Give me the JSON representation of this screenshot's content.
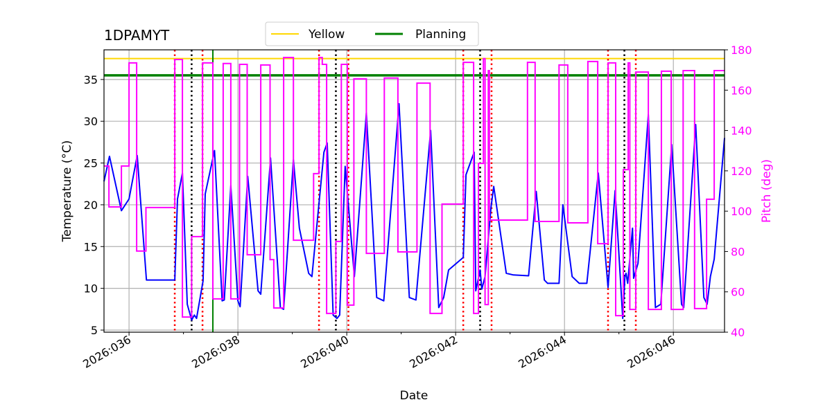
{
  "chart_data": {
    "type": "line",
    "title": "1DPAMYT",
    "xlabel": "Date",
    "ylabel": "Temperature ($^\\circ$C)",
    "ylabel_display": "Temperature (°C)",
    "y2label": "Pitch (deg)",
    "xlim": [
      35.54,
      46.94
    ],
    "ylim": [
      4.75,
      38.55
    ],
    "y2lim": [
      40,
      180
    ],
    "grid": true,
    "legend_placement": "top-center (above axes)",
    "xticks": [
      {
        "value": 36,
        "label": "2026:036"
      },
      {
        "value": 38,
        "label": "2026:038"
      },
      {
        "value": 40,
        "label": "2026:040"
      },
      {
        "value": 42,
        "label": "2026:042"
      },
      {
        "value": 44,
        "label": "2026:044"
      },
      {
        "value": 46,
        "label": "2026:046"
      }
    ],
    "xminor": [
      37,
      39,
      41,
      43,
      45
    ],
    "yticks": [
      5,
      10,
      15,
      20,
      25,
      30,
      35
    ],
    "y2ticks": [
      40,
      60,
      80,
      100,
      120,
      140,
      160,
      180
    ],
    "colors": {
      "temperature": "#0000ff",
      "pitch": "#ff00ff",
      "yellow": "#ffd700",
      "planning": "#008000",
      "red_marker": "#ff0000",
      "black_marker": "#000000",
      "grid": "#b0b0b0"
    },
    "legend": [
      {
        "name": "Yellow",
        "color": "#ffd700"
      },
      {
        "name": "Planning",
        "color": "#008000"
      }
    ],
    "limits": [
      {
        "name": "Yellow",
        "value": 37.5
      },
      {
        "name": "Planning",
        "value": 35.5
      }
    ],
    "red_markers": [
      36.84,
      37.35,
      39.49,
      40.03,
      42.14,
      42.66,
      44.8,
      45.31
    ],
    "black_markers": [
      37.15,
      39.8,
      42.45,
      45.1
    ],
    "green_marker": 37.54,
    "temperature": [
      [
        35.54,
        22.8
      ],
      [
        35.64,
        25.8
      ],
      [
        35.86,
        19.3
      ],
      [
        36.0,
        20.7
      ],
      [
        36.15,
        25.9
      ],
      [
        36.32,
        11.0
      ],
      [
        36.38,
        11.0
      ],
      [
        36.84,
        11.0
      ],
      [
        36.89,
        20.7
      ],
      [
        36.98,
        23.8
      ],
      [
        37.07,
        8.1
      ],
      [
        37.15,
        6.2
      ],
      [
        37.2,
        6.8
      ],
      [
        37.24,
        6.4
      ],
      [
        37.36,
        10.9
      ],
      [
        37.4,
        21.3
      ],
      [
        37.57,
        26.5
      ],
      [
        37.71,
        8.5
      ],
      [
        37.75,
        8.6
      ],
      [
        37.87,
        22.3
      ],
      [
        38.0,
        8.5
      ],
      [
        38.04,
        7.8
      ],
      [
        38.18,
        23.4
      ],
      [
        38.37,
        9.7
      ],
      [
        38.42,
        9.3
      ],
      [
        38.6,
        25.6
      ],
      [
        38.78,
        7.7
      ],
      [
        38.84,
        7.5
      ],
      [
        39.02,
        25.4
      ],
      [
        39.13,
        17.2
      ],
      [
        39.3,
        11.8
      ],
      [
        39.36,
        11.4
      ],
      [
        39.58,
        26.3
      ],
      [
        39.64,
        27.4
      ],
      [
        39.75,
        6.8
      ],
      [
        39.82,
        6.4
      ],
      [
        39.87,
        6.8
      ],
      [
        39.97,
        24.6
      ],
      [
        40.14,
        11.4
      ],
      [
        40.36,
        31.0
      ],
      [
        40.55,
        8.9
      ],
      [
        40.68,
        8.5
      ],
      [
        40.96,
        32.1
      ],
      [
        41.15,
        8.9
      ],
      [
        41.27,
        8.6
      ],
      [
        41.54,
        28.9
      ],
      [
        41.69,
        7.7
      ],
      [
        41.78,
        8.9
      ],
      [
        41.87,
        12.2
      ],
      [
        42.14,
        13.7
      ],
      [
        42.19,
        23.6
      ],
      [
        42.34,
        26.3
      ],
      [
        42.37,
        9.7
      ],
      [
        42.45,
        12.2
      ],
      [
        42.48,
        9.9
      ],
      [
        42.54,
        11.4
      ],
      [
        42.65,
        19.7
      ],
      [
        42.7,
        22.2
      ],
      [
        42.93,
        11.8
      ],
      [
        43.06,
        11.6
      ],
      [
        43.34,
        11.5
      ],
      [
        43.48,
        21.6
      ],
      [
        43.63,
        11.0
      ],
      [
        43.69,
        10.6
      ],
      [
        43.9,
        10.6
      ],
      [
        43.97,
        20.0
      ],
      [
        44.14,
        11.4
      ],
      [
        44.27,
        10.6
      ],
      [
        44.41,
        10.6
      ],
      [
        44.62,
        23.8
      ],
      [
        44.8,
        10.1
      ],
      [
        44.93,
        21.7
      ],
      [
        45.07,
        6.4
      ],
      [
        45.11,
        11.4
      ],
      [
        45.13,
        11.8
      ],
      [
        45.16,
        10.6
      ],
      [
        45.25,
        17.2
      ],
      [
        45.27,
        11.2
      ],
      [
        45.35,
        13.0
      ],
      [
        45.54,
        30.8
      ],
      [
        45.67,
        7.7
      ],
      [
        45.77,
        8.1
      ],
      [
        45.97,
        27.2
      ],
      [
        46.15,
        8.1
      ],
      [
        46.19,
        7.7
      ],
      [
        46.41,
        29.6
      ],
      [
        46.56,
        8.9
      ],
      [
        46.62,
        8.1
      ],
      [
        46.68,
        11.4
      ],
      [
        46.75,
        13.5
      ],
      [
        46.94,
        28.0
      ]
    ],
    "pitch_steps": [
      [
        35.54,
        122.4
      ],
      [
        35.63,
        102.1
      ],
      [
        35.86,
        122.4
      ],
      [
        36.0,
        173.5
      ],
      [
        36.14,
        80.2
      ],
      [
        36.31,
        101.8
      ],
      [
        36.84,
        175.2
      ],
      [
        36.98,
        47.5
      ],
      [
        37.15,
        87.4
      ],
      [
        37.35,
        173.5
      ],
      [
        37.54,
        56.5
      ],
      [
        37.73,
        173.2
      ],
      [
        37.87,
        56.5
      ],
      [
        38.03,
        172.8
      ],
      [
        38.17,
        78.4
      ],
      [
        38.42,
        172.5
      ],
      [
        38.59,
        76.0
      ],
      [
        38.66,
        52.0
      ],
      [
        38.84,
        176.2
      ],
      [
        39.02,
        85.6
      ],
      [
        39.39,
        118.6
      ],
      [
        39.49,
        176.2
      ],
      [
        39.55,
        172.8
      ],
      [
        39.63,
        49.3
      ],
      [
        39.8,
        85.0
      ],
      [
        39.9,
        172.8
      ],
      [
        40.01,
        53.4
      ],
      [
        40.13,
        165.6
      ],
      [
        40.36,
        79.1
      ],
      [
        40.69,
        166.0
      ],
      [
        40.94,
        79.8
      ],
      [
        41.29,
        163.5
      ],
      [
        41.53,
        49.3
      ],
      [
        41.75,
        103.5
      ],
      [
        42.14,
        173.8
      ],
      [
        42.33,
        49.3
      ],
      [
        42.42,
        123.7
      ],
      [
        42.51,
        175.6
      ],
      [
        42.54,
        53.7
      ],
      [
        42.6,
        169.7
      ],
      [
        42.62,
        95.6
      ],
      [
        43.32,
        173.8
      ],
      [
        43.46,
        94.9
      ],
      [
        43.9,
        172.5
      ],
      [
        44.06,
        94.2
      ],
      [
        44.43,
        174.2
      ],
      [
        44.61,
        83.9
      ],
      [
        44.8,
        173.5
      ],
      [
        44.94,
        48.2
      ],
      [
        45.08,
        120.6
      ],
      [
        45.17,
        173.5
      ],
      [
        45.2,
        51.3
      ],
      [
        45.31,
        169.0
      ],
      [
        45.54,
        51.3
      ],
      [
        45.78,
        169.4
      ],
      [
        45.96,
        51.3
      ],
      [
        46.18,
        169.7
      ],
      [
        46.39,
        51.7
      ],
      [
        46.61,
        105.9
      ],
      [
        46.75,
        169.7
      ],
      [
        46.94,
        169.7
      ]
    ]
  }
}
